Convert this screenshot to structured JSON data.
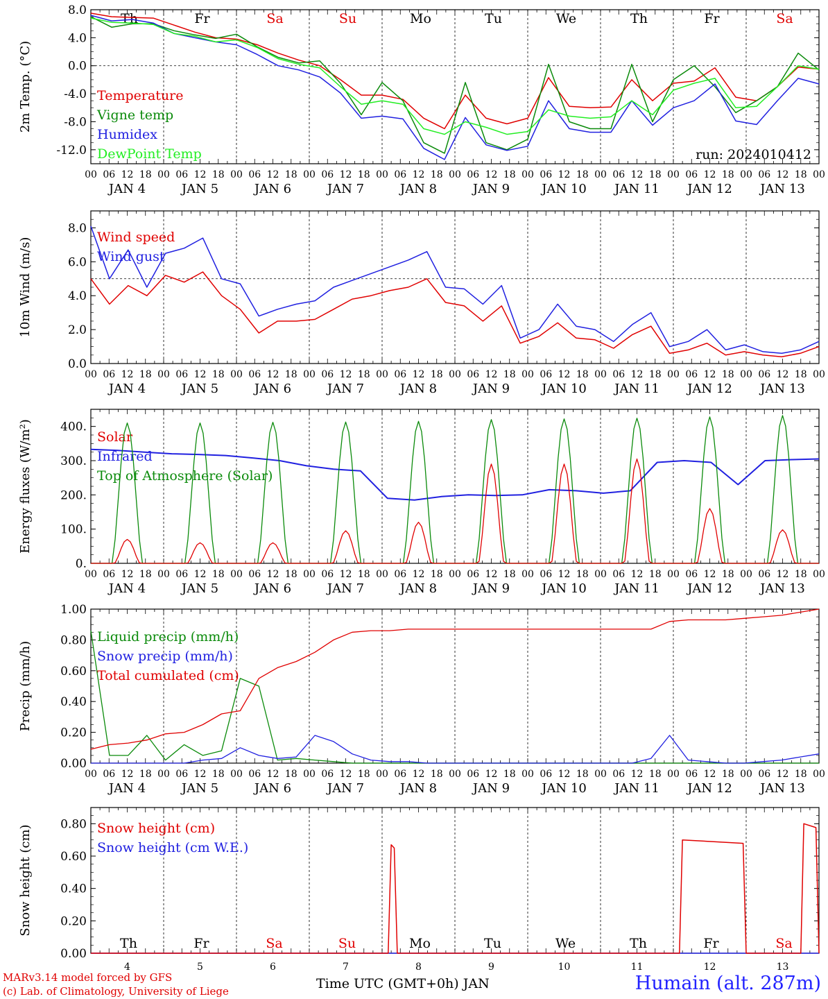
{
  "header": {
    "run": "run: 2024010412"
  },
  "footer": {
    "credit_line1": "MARv3.14 model forced by GFS",
    "credit_line2": "(c) Lab. of Climatology, University of Liege",
    "xaxis_title": "Time UTC (GMT+0h) JAN",
    "station": "Humain (alt. 287m)"
  },
  "colors": {
    "red": "#e00000",
    "darkgreen": "#0a8a0a",
    "blue": "#2020e0",
    "lightgreen": "#22ee22"
  },
  "chart_data": {
    "type": "line",
    "hours_per_step": 6,
    "x_start": "JAN 4 00",
    "hour_tick_labels": [
      "00",
      "06",
      "12",
      "18"
    ],
    "date_labels": [
      "JAN 4",
      "JAN 5",
      "JAN 6",
      "JAN 7",
      "JAN 8",
      "JAN 9",
      "JAN 10",
      "JAN 11",
      "JAN 12",
      "JAN 13"
    ],
    "weekday_labels": [
      "Th",
      "Fr",
      "Sa",
      "Su",
      "Mo",
      "Tu",
      "We",
      "Th",
      "Fr",
      "Sa"
    ],
    "weekday_colors": [
      "#000",
      "#000",
      "#e00000",
      "#e00000",
      "#000",
      "#000",
      "#000",
      "#000",
      "#000",
      "#e00000"
    ],
    "bottom_day_numbers": [
      "4",
      "5",
      "6",
      "7",
      "8",
      "9",
      "10",
      "11",
      "12",
      "13"
    ],
    "panels": [
      {
        "ylabel": "2m Temp. (°C)",
        "ylim": [
          -14,
          8
        ],
        "yticks": [
          8,
          4,
          0,
          -4,
          -8,
          -12
        ],
        "ytick_labels": [
          "8.0",
          "4.0",
          "0.0",
          "-4.0",
          "-8.0",
          "-12.0"
        ],
        "hline": 0,
        "series": [
          {
            "name": "Temperature",
            "color": "#e00000",
            "values": [
              7.5,
              7.0,
              6.9,
              6.8,
              5.8,
              4.8,
              4.0,
              3.8,
              3.0,
              1.8,
              0.8,
              0.0,
              -2.0,
              -4.2,
              -4.2,
              -4.8,
              -7.5,
              -9.0,
              -4.2,
              -7.5,
              -8.3,
              -7.5,
              -1.7,
              -5.8,
              -6.0,
              -5.9,
              -2.0,
              -5.0,
              -2.5,
              -2.2,
              -0.3,
              -4.5,
              -5.0,
              -3.0,
              -0.2,
              -0.5
            ]
          },
          {
            "name": "Vigne temp",
            "color": "#0a8a0a",
            "values": [
              7.0,
              5.5,
              6.0,
              6.0,
              5.0,
              4.4,
              3.9,
              4.5,
              2.7,
              1.2,
              0.4,
              0.7,
              -2.5,
              -7.0,
              -2.4,
              -5.0,
              -11.0,
              -12.5,
              -2.4,
              -11.0,
              -12.0,
              -10.5,
              0.2,
              -8.0,
              -9.0,
              -9.0,
              0.2,
              -8.0,
              -2.0,
              0.0,
              -3.0,
              -6.7,
              -5.0,
              -3.0,
              1.8,
              -0.6
            ]
          },
          {
            "name": "Humidex",
            "color": "#2020e0",
            "values": [
              7.2,
              6.4,
              6.6,
              6.1,
              4.6,
              4.0,
              3.4,
              3.0,
              1.6,
              0.0,
              -0.6,
              -1.6,
              -3.9,
              -7.5,
              -7.2,
              -7.6,
              -11.8,
              -13.4,
              -7.4,
              -11.3,
              -12.1,
              -11.5,
              -5.0,
              -9.0,
              -9.5,
              -9.5,
              -5.0,
              -8.5,
              -6.0,
              -5.0,
              -2.6,
              -7.9,
              -8.4,
              -5.0,
              -1.8,
              -2.6
            ]
          },
          {
            "name": "DewPoint Temp",
            "color": "#22ee22",
            "values": [
              6.8,
              6.2,
              6.1,
              5.9,
              4.6,
              4.2,
              3.4,
              3.7,
              2.6,
              1.0,
              0.2,
              -0.3,
              -3.0,
              -5.5,
              -5.0,
              -5.5,
              -9.0,
              -9.8,
              -8.0,
              -8.8,
              -9.8,
              -9.4,
              -6.3,
              -7.2,
              -7.5,
              -7.3,
              -5.0,
              -7.0,
              -3.5,
              -2.5,
              -1.8,
              -6.0,
              -5.8,
              -3.0,
              0.0,
              -0.5
            ]
          }
        ]
      },
      {
        "ylabel": "10m Wind (m/s)",
        "ylim": [
          0,
          9
        ],
        "yticks": [
          0,
          2,
          4,
          6,
          8
        ],
        "ytick_labels": [
          "0.0",
          "2.0",
          "4.0",
          "6.0",
          "8.0"
        ],
        "hline": 5,
        "series": [
          {
            "name": "Wind speed",
            "color": "#e00000",
            "values": [
              5.0,
              3.5,
              4.6,
              4.0,
              5.2,
              4.8,
              5.4,
              4.0,
              3.2,
              1.8,
              2.5,
              2.5,
              2.6,
              3.2,
              3.8,
              4.0,
              4.3,
              4.5,
              5.0,
              3.6,
              3.4,
              2.5,
              3.4,
              1.2,
              1.6,
              2.4,
              1.5,
              1.4,
              0.9,
              1.7,
              2.2,
              0.6,
              0.8,
              1.2,
              0.5,
              0.7,
              0.5,
              0.4,
              0.6,
              1.0
            ]
          },
          {
            "name": "Wind gust",
            "color": "#2020e0",
            "values": [
              8.1,
              5.0,
              6.7,
              4.5,
              6.5,
              6.8,
              7.4,
              5.0,
              4.7,
              2.8,
              3.2,
              3.5,
              3.7,
              4.5,
              4.9,
              5.3,
              5.7,
              6.1,
              6.6,
              4.5,
              4.4,
              3.5,
              4.6,
              1.5,
              2.0,
              3.5,
              2.2,
              2.0,
              1.3,
              2.3,
              3.0,
              1.0,
              1.3,
              2.0,
              0.8,
              1.1,
              0.7,
              0.6,
              0.8,
              1.3
            ]
          }
        ]
      },
      {
        "ylabel": "Energy fluxes (W/m²)",
        "ylim": [
          0,
          450
        ],
        "yticks": [
          0,
          100,
          200,
          300,
          400
        ],
        "ytick_labels": [
          "0.",
          "100.",
          "200.",
          "300.",
          "400."
        ],
        "series": [
          {
            "name": "Solar",
            "color": "#e00000",
            "values": [
              70,
              60,
              60,
              95,
              120,
              290,
              290,
              305,
              160,
              98
            ]
          },
          {
            "name": "Infrared",
            "color": "#2020e0",
            "values": [
              333,
              330,
              325,
              320,
              318,
              315,
              308,
              300,
              285,
              275,
              270,
              190,
              185,
              195,
              200,
              198,
              200,
              215,
              212,
              205,
              212,
              295,
              300,
              295,
              230,
              300,
              303,
              305
            ]
          },
          {
            "name": "Top of Atmosphere (Solar)",
            "color": "#0a8a0a",
            "values": [
              410,
              410,
              412,
              413,
              415,
              420,
              422,
              424,
              428,
              432
            ]
          }
        ]
      },
      {
        "ylabel": "Precip (mm/h)",
        "ylim": [
          0,
          1
        ],
        "yticks": [
          0,
          0.2,
          0.4,
          0.6,
          0.8,
          1.0
        ],
        "ytick_labels": [
          "0.00",
          "0.20",
          "0.40",
          "0.60",
          "0.80",
          "1.00"
        ],
        "series": [
          {
            "name": "Liquid precip (mm/h)",
            "color": "#0a8a0a",
            "values": [
              0.86,
              0.05,
              0.05,
              0.18,
              0.02,
              0.12,
              0.05,
              0.08,
              0.55,
              0.5,
              0.02,
              0.03,
              0.02,
              0.01,
              0.0,
              0.0,
              0.0,
              0.0,
              0.0,
              0.0,
              0.0,
              0.0,
              0.0,
              0.0,
              0.0,
              0.0,
              0.0,
              0.0,
              0.0,
              0.0,
              0.0,
              0.0,
              0.0,
              0.0,
              0.0,
              0.0,
              0.0,
              0.0,
              0.0,
              0.0
            ]
          },
          {
            "name": "Snow precip (mm/h)",
            "color": "#2020e0",
            "values": [
              0.0,
              0.0,
              0.0,
              0.0,
              0.0,
              0.0,
              0.02,
              0.03,
              0.1,
              0.05,
              0.03,
              0.04,
              0.18,
              0.14,
              0.06,
              0.02,
              0.01,
              0.01,
              0.0,
              0.0,
              0.0,
              0.0,
              0.0,
              0.0,
              0.0,
              0.0,
              0.0,
              0.0,
              0.0,
              0.0,
              0.03,
              0.18,
              0.02,
              0.01,
              0.0,
              0.0,
              0.01,
              0.02,
              0.04,
              0.06
            ]
          },
          {
            "name": "Total cumulated (cm)",
            "color": "#e00000",
            "values": [
              0.09,
              0.12,
              0.13,
              0.15,
              0.19,
              0.2,
              0.25,
              0.32,
              0.34,
              0.55,
              0.62,
              0.66,
              0.72,
              0.8,
              0.85,
              0.86,
              0.86,
              0.87,
              0.87,
              0.87,
              0.87,
              0.87,
              0.87,
              0.87,
              0.87,
              0.87,
              0.87,
              0.87,
              0.87,
              0.87,
              0.87,
              0.92,
              0.93,
              0.93,
              0.93,
              0.94,
              0.95,
              0.96,
              0.98,
              1.0
            ]
          }
        ]
      },
      {
        "ylabel": "Snow height (cm)",
        "ylim": [
          0,
          0.9
        ],
        "yticks": [
          0,
          0.2,
          0.4,
          0.6,
          0.8
        ],
        "ytick_labels": [
          "0.00",
          "0.20",
          "0.40",
          "0.60",
          "0.80"
        ],
        "series": [
          {
            "name": "Snow height (cm)",
            "color": "#e00000",
            "events": [
              {
                "start_h": 98,
                "end_h": 101,
                "peak": 0.67
              },
              {
                "start_h": 194,
                "end_h": 216,
                "peak": 0.7
              },
              {
                "start_h": 234,
                "end_h": 240,
                "peak": 0.8
              }
            ]
          },
          {
            "name": "Snow height (cm W.E.)",
            "color": "#2020e0",
            "values": [
              0
            ]
          }
        ]
      }
    ]
  }
}
